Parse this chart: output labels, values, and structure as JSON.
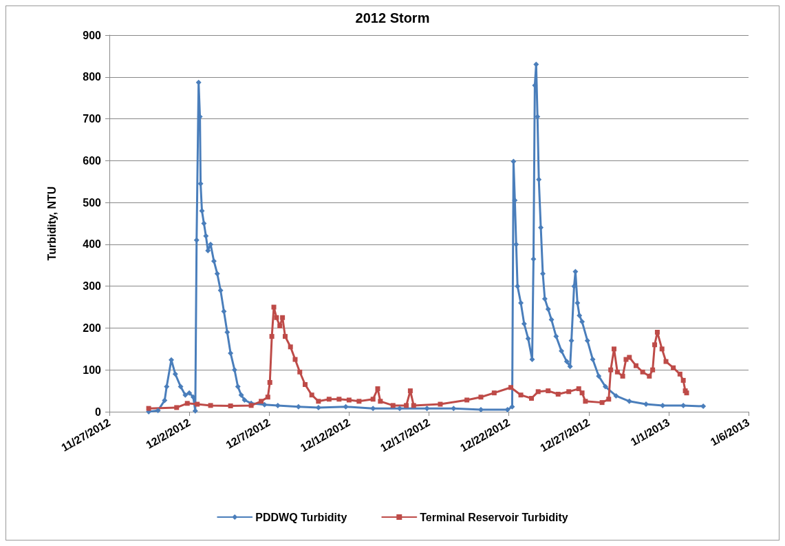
{
  "chart_data": {
    "type": "line",
    "title": "2012 Storm",
    "ylabel": "Turbidity, NTU",
    "xlim": [
      "2012-11-27",
      "2013-01-06"
    ],
    "xticks": [
      {
        "value": "2012-11-27",
        "label": "11/27/2012"
      },
      {
        "value": "2012-12-02",
        "label": "12/2/2012"
      },
      {
        "value": "2012-12-07",
        "label": "12/7/2012"
      },
      {
        "value": "2012-12-12",
        "label": "12/12/2012"
      },
      {
        "value": "2012-12-17",
        "label": "12/17/2012"
      },
      {
        "value": "2012-12-22",
        "label": "12/22/2012"
      },
      {
        "value": "2012-12-27",
        "label": "12/27/2012"
      },
      {
        "value": "2013-01-01",
        "label": "1/1/2013"
      },
      {
        "value": "2013-01-06",
        "label": "1/6/2013"
      }
    ],
    "ylim": [
      0,
      900
    ],
    "yticks": [
      0,
      100,
      200,
      300,
      400,
      500,
      600,
      700,
      800,
      900
    ],
    "grid": "y",
    "legend": "bottom",
    "line_style": "solid",
    "series": [
      {
        "name": "PDDWQ Turbidity",
        "color": "#4a7ebb",
        "marker": "diamond",
        "x": [
          "2012-11-29T11:00",
          "2012-11-30T01:00",
          "2012-11-30T11:00",
          "2012-11-30T14:00",
          "2012-11-30T21:00",
          "2012-12-01T03:00",
          "2012-12-01T11:00",
          "2012-12-01T18:00",
          "2012-12-02T00:00",
          "2012-12-02T06:00",
          "2012-12-02T09:00",
          "2012-12-02T11:00",
          "2012-12-02T14:00",
          "2012-12-02T16:00",
          "2012-12-02T17:00",
          "2012-12-02T19:00",
          "2012-12-02T22:00",
          "2012-12-03T01:00",
          "2012-12-03T04:00",
          "2012-12-03T08:00",
          "2012-12-03T13:00",
          "2012-12-03T18:00",
          "2012-12-03T23:00",
          "2012-12-04T04:00",
          "2012-12-04T09:00",
          "2012-12-04T14:00",
          "2012-12-04T20:00",
          "2012-12-05T01:00",
          "2012-12-05T06:00",
          "2012-12-05T11:00",
          "2012-12-05T21:00",
          "2012-12-06T17:00",
          "2012-12-07T13:00",
          "2012-12-08T20:00",
          "2012-12-10T02:00",
          "2012-12-11T19:00",
          "2012-12-13T12:00",
          "2012-12-15T04:00",
          "2012-12-16T21:00",
          "2012-12-18T13:00",
          "2012-12-20T06:00",
          "2012-12-21T22:00",
          "2012-12-22T05:00",
          "2012-12-22T07:00",
          "2012-12-22T09:00",
          "2012-12-22T11:00",
          "2012-12-22T13:00",
          "2012-12-22T18:00",
          "2012-12-22T23:00",
          "2012-12-23T05:00",
          "2012-12-23T11:00",
          "2012-12-23T13:00",
          "2012-12-23T15:00",
          "2012-12-23T17:00",
          "2012-12-23T19:00",
          "2012-12-23T21:00",
          "2012-12-24T00:00",
          "2012-12-24T03:00",
          "2012-12-24T06:00",
          "2012-12-24T11:00",
          "2012-12-24T16:00",
          "2012-12-24T23:00",
          "2012-12-25T07:00",
          "2012-12-25T15:00",
          "2012-12-25T20:00",
          "2012-12-25T22:00",
          "2012-12-26T02:00",
          "2012-12-26T04:00",
          "2012-12-26T07:00",
          "2012-12-26T10:00",
          "2012-12-26T14:00",
          "2012-12-26T22:00",
          "2012-12-27T06:00",
          "2012-12-27T15:00",
          "2012-12-28T01:00",
          "2012-12-28T17:00",
          "2012-12-29T13:00",
          "2012-12-30T14:00",
          "2012-12-31T15:00",
          "2013-01-01T22:00",
          "2013-01-03T04:00"
        ],
        "values": [
          0,
          3,
          27,
          60,
          124,
          90,
          60,
          40,
          45,
          35,
          2,
          410,
          787,
          705,
          545,
          480,
          450,
          420,
          385,
          400,
          360,
          330,
          290,
          240,
          190,
          140,
          100,
          60,
          40,
          28,
          20,
          17,
          15,
          12,
          10,
          12,
          8,
          8,
          8,
          8,
          5,
          5,
          12,
          598,
          505,
          400,
          300,
          260,
          210,
          175,
          125,
          365,
          780,
          830,
          705,
          555,
          440,
          330,
          270,
          245,
          220,
          180,
          145,
          120,
          108,
          170,
          300,
          335,
          260,
          230,
          215,
          170,
          125,
          85,
          60,
          38,
          25,
          18,
          15,
          15,
          13
        ]
      },
      {
        "name": "Terminal Reservoir Turbidity",
        "color": "#be4b48",
        "marker": "square",
        "x": [
          "2012-11-29T11:00",
          "2012-12-01T05:00",
          "2012-12-01T21:00",
          "2012-12-02T12:00",
          "2012-12-03T08:00",
          "2012-12-04T14:00",
          "2012-12-05T21:00",
          "2012-12-06T12:00",
          "2012-12-06T22:00",
          "2012-12-07T01:00",
          "2012-12-07T04:00",
          "2012-12-07T07:00",
          "2012-12-07T11:00",
          "2012-12-07T16:00",
          "2012-12-07T20:00",
          "2012-12-08T00:00",
          "2012-12-08T08:00",
          "2012-12-08T15:00",
          "2012-12-08T22:00",
          "2012-12-09T06:00",
          "2012-12-09T16:00",
          "2012-12-10T02:00",
          "2012-12-10T18:00",
          "2012-12-11T09:00",
          "2012-12-12T00:00",
          "2012-12-12T15:00",
          "2012-12-13T12:00",
          "2012-12-13T19:00",
          "2012-12-13T23:00",
          "2012-12-14T18:00",
          "2012-12-15T14:00",
          "2012-12-15T20:00",
          "2012-12-16T01:00",
          "2012-12-17T17:00",
          "2012-12-19T09:00",
          "2012-12-20T06:00",
          "2012-12-21T02:00",
          "2012-12-22T03:00",
          "2012-12-22T18:00",
          "2012-12-23T10:00",
          "2012-12-23T20:00",
          "2012-12-24T11:00",
          "2012-12-25T02:00",
          "2012-12-25T18:00",
          "2012-12-26T09:00",
          "2012-12-26T14:00",
          "2012-12-26T19:00",
          "2012-12-27T20:00",
          "2012-12-28T06:00",
          "2012-12-28T09:00",
          "2012-12-28T14:00",
          "2012-12-28T19:00",
          "2012-12-29T03:00",
          "2012-12-29T08:00",
          "2012-12-29T13:00",
          "2012-12-29T23:00",
          "2012-12-30T09:00",
          "2012-12-30T19:00",
          "2012-12-31T00:00",
          "2012-12-31T03:00",
          "2012-12-31T07:00",
          "2012-12-31T14:00",
          "2012-12-31T20:00",
          "2013-01-01T07:00",
          "2013-01-01T17:00",
          "2013-01-01T22:00",
          "2013-01-02T01:00",
          "2013-01-02T03:00"
        ],
        "values": [
          8,
          10,
          20,
          18,
          15,
          14,
          15,
          25,
          35,
          70,
          180,
          250,
          225,
          205,
          225,
          180,
          155,
          125,
          95,
          65,
          40,
          25,
          30,
          30,
          28,
          25,
          30,
          55,
          25,
          15,
          15,
          50,
          15,
          18,
          28,
          35,
          45,
          58,
          40,
          32,
          48,
          50,
          42,
          48,
          55,
          45,
          25,
          22,
          30,
          100,
          150,
          95,
          85,
          125,
          130,
          110,
          95,
          85,
          100,
          160,
          190,
          150,
          120,
          105,
          90,
          75,
          50,
          45
        ]
      }
    ]
  }
}
